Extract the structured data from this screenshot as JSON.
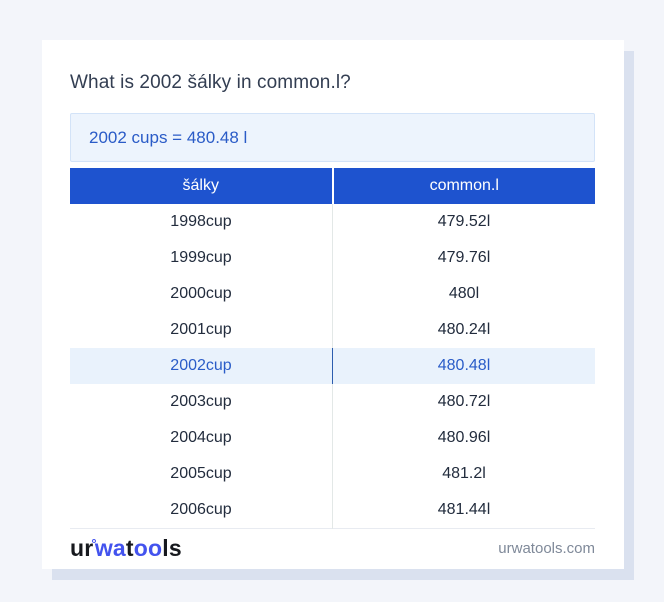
{
  "colors": {
    "page_background": "#f3f5fa",
    "card_background": "#ffffff",
    "card_shadow": "#dae1ef",
    "table_header_blue": "#1e53cf",
    "result_box_background": "#edf4fd",
    "result_box_text": "#2a5bc7",
    "highlight_row_background": "#e9f2fc",
    "highlight_row_text": "#2a5cc8",
    "logo_blue": "#4353ee",
    "body_text": "#222c3d"
  },
  "header": {
    "title": "What is 2002 šálky in common.l?",
    "result": "2002 cups = 480.48 l"
  },
  "table": {
    "columns": [
      "šálky",
      "common.l"
    ],
    "rows": [
      {
        "salky": "1998cup",
        "common_l": "479.52l",
        "highlighted": false
      },
      {
        "salky": "1999cup",
        "common_l": "479.76l",
        "highlighted": false
      },
      {
        "salky": "2000cup",
        "common_l": "480l",
        "highlighted": false
      },
      {
        "salky": "2001cup",
        "common_l": "480.24l",
        "highlighted": false
      },
      {
        "salky": "2002cup",
        "common_l": "480.48l",
        "highlighted": true
      },
      {
        "salky": "2003cup",
        "common_l": "480.72l",
        "highlighted": false
      },
      {
        "salky": "2004cup",
        "common_l": "480.96l",
        "highlighted": false
      },
      {
        "salky": "2005cup",
        "common_l": "481.2l",
        "highlighted": false
      },
      {
        "salky": "2006cup",
        "common_l": "481.44l",
        "highlighted": false
      }
    ]
  },
  "footer": {
    "logo_segments": [
      {
        "text": "ur",
        "style": "dark"
      },
      {
        "text": "°",
        "style": "ring"
      },
      {
        "text": "wa",
        "style": "blue"
      },
      {
        "text": "t",
        "style": "dark"
      },
      {
        "text": "oo",
        "style": "blue"
      },
      {
        "text": "ls",
        "style": "dark"
      }
    ],
    "domain": "urwatools.com"
  }
}
